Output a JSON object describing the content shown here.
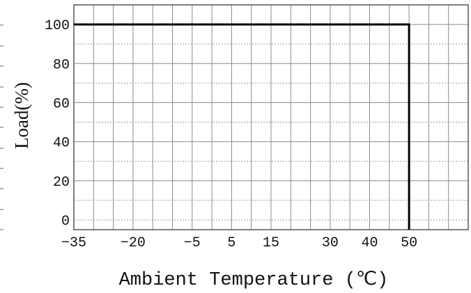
{
  "chart_data": {
    "type": "line",
    "xlabel": "Ambient Temperature (℃)",
    "ylabel": "Load(%)",
    "x_ticks": [
      "−35",
      "−20",
      "−5",
      "5",
      "15",
      "30",
      "40",
      "50"
    ],
    "y_ticks": [
      "0",
      "20",
      "40",
      "60",
      "80",
      "100"
    ],
    "xlim": [
      -35,
      65
    ],
    "ylim": [
      -5,
      110
    ],
    "grid": true,
    "series": [
      {
        "x": [
          -35,
          50,
          50
        ],
        "y": [
          100,
          100,
          -5
        ]
      }
    ],
    "colors": {
      "line": "#000000",
      "grid": "#8a8a8a",
      "minor_grid": "#9a9a9a"
    }
  }
}
